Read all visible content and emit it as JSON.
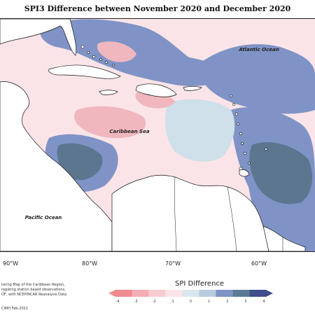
{
  "title": "SPI3 Difference between November 2020 and December 2020",
  "labels": {
    "atlantic": "Atlantic Ocean",
    "caribbean": "Caribbean Sea",
    "pacific": "Pacific Ocean"
  },
  "lon_ticks": [
    "90°W",
    "80°W",
    "70°W",
    "60°W"
  ],
  "legend": {
    "title": "SPI Difference",
    "values": [
      "-4",
      "-3",
      "-2",
      "-1",
      "0",
      "1",
      "2",
      "3",
      "4"
    ],
    "colors": [
      "#f08a8f",
      "#f4aeb3",
      "#f8cdd2",
      "#fbe4e8",
      "#d9e7ee",
      "#b8ccdf",
      "#7f93c6",
      "#5b7a94",
      "#3f4e8a"
    ]
  },
  "footer": {
    "line1": "toring Map of the Caribbean Region,",
    "line2": "regating station based observations,",
    "line3": "OF, with NCEP/NCAR Reanalysis Data",
    "credit": "CIMH Feb-2021"
  },
  "colors": {
    "neg_light": "#f8d3d9",
    "neg_mid": "#f0b7bf",
    "neutral": "#fbe4e8",
    "pos_light": "#cfe0ea",
    "pos_mid": "#7f93c6",
    "pos_dark": "#5c7690",
    "land": "#ffffff",
    "coast": "#111111"
  }
}
